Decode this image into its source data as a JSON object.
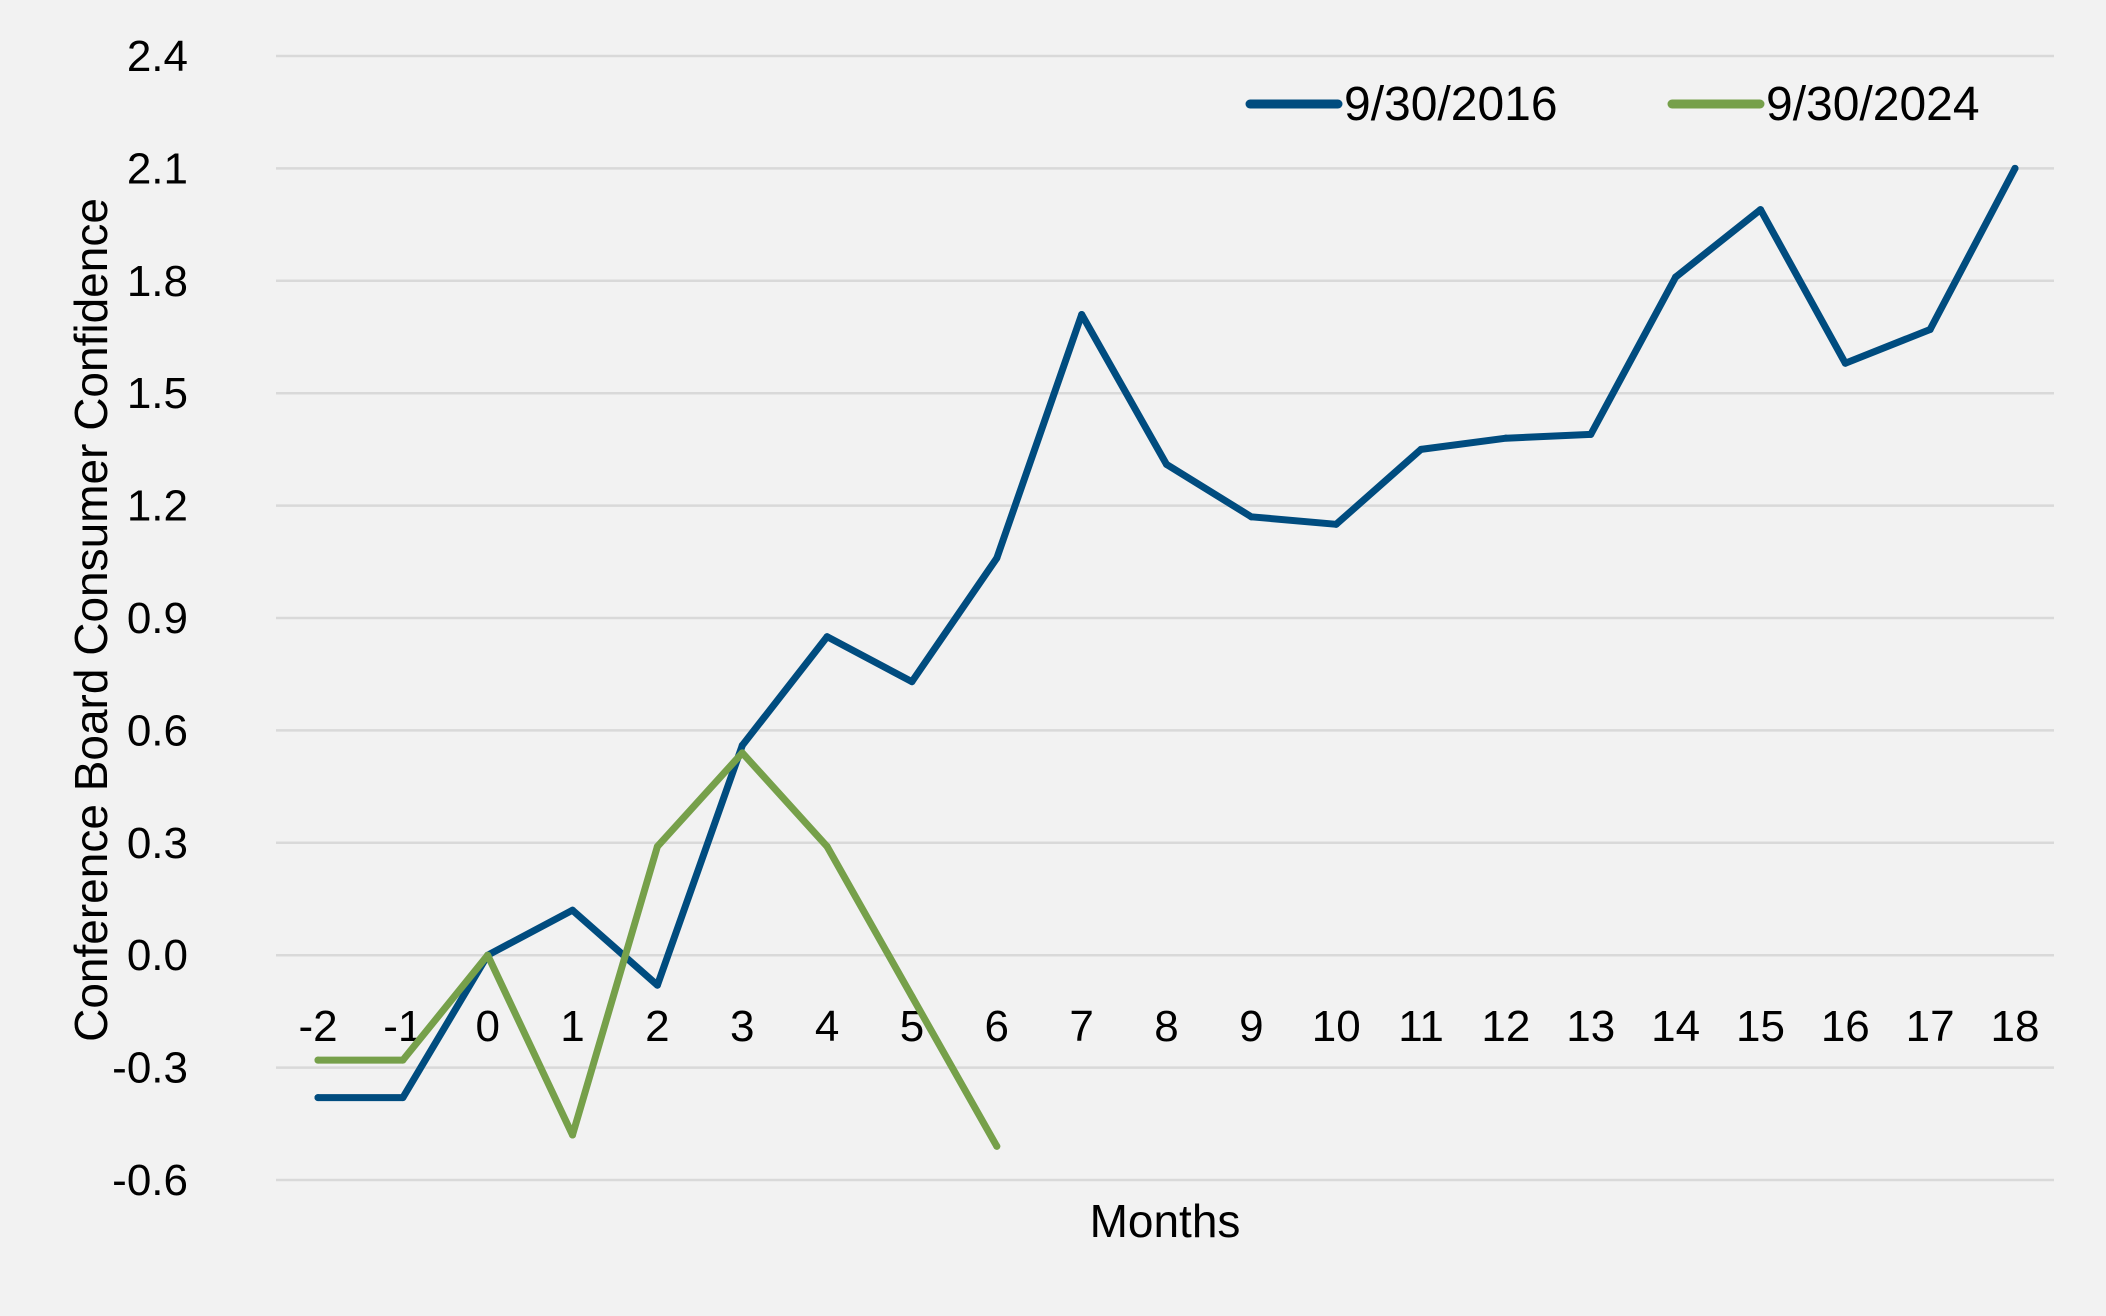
{
  "chart_data": {
    "type": "line",
    "title": "",
    "xlabel": "Months",
    "ylabel": "Conference Board Consumer Confidence",
    "x": [
      -2,
      -1,
      0,
      1,
      2,
      3,
      4,
      5,
      6,
      7,
      8,
      9,
      10,
      11,
      12,
      13,
      14,
      15,
      16,
      17,
      18
    ],
    "x_tick_labels": [
      "-2",
      "-1",
      "0",
      "1",
      "2",
      "3",
      "4",
      "5",
      "6",
      "7",
      "8",
      "9",
      "10",
      "11",
      "12",
      "13",
      "14",
      "15",
      "16",
      "17",
      "18"
    ],
    "y_ticks": [
      -0.6,
      -0.3,
      0.0,
      0.3,
      0.6,
      0.9,
      1.2,
      1.5,
      1.8,
      2.1,
      2.4
    ],
    "y_tick_labels": [
      "-0.6",
      "-0.3",
      "0.0",
      "0.3",
      "0.6",
      "0.9",
      "1.2",
      "1.5",
      "1.8",
      "2.1",
      "2.4"
    ],
    "ylim": [
      -0.6,
      2.4
    ],
    "grid": true,
    "legend_position": "top-right",
    "series": [
      {
        "name": "9/30/2016",
        "color": "#004c7f",
        "values": [
          -0.38,
          -0.38,
          0.0,
          0.12,
          -0.08,
          0.56,
          0.85,
          0.73,
          1.06,
          1.71,
          1.31,
          1.17,
          1.15,
          1.35,
          1.38,
          1.39,
          1.81,
          1.99,
          1.58,
          1.67,
          2.1
        ]
      },
      {
        "name": "9/30/2024",
        "color": "#76a04a",
        "values": [
          -0.28,
          -0.28,
          0.0,
          -0.48,
          0.29,
          0.54,
          0.29,
          -0.11,
          -0.51,
          null,
          null,
          null,
          null,
          null,
          null,
          null,
          null,
          null,
          null,
          null,
          null
        ]
      }
    ]
  }
}
